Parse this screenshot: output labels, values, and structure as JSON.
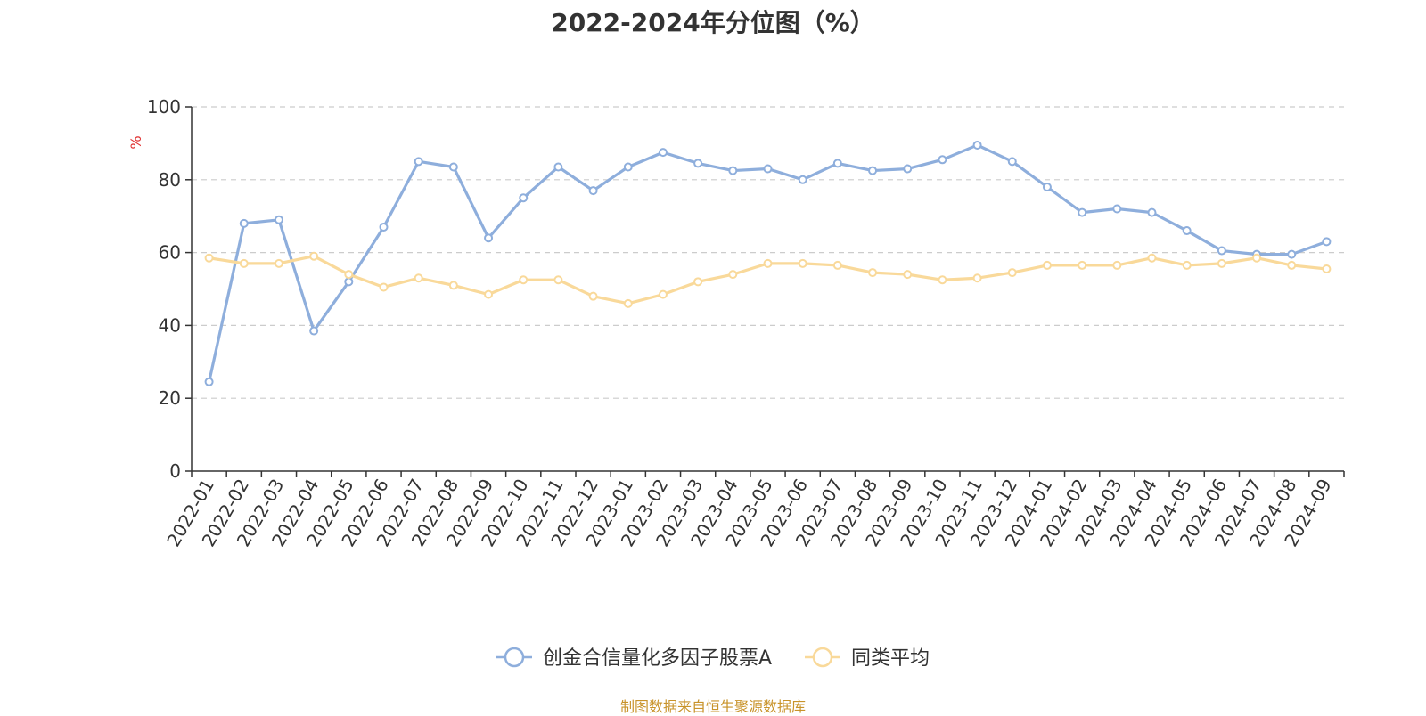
{
  "chart_data": {
    "type": "line",
    "title": "2022-2024年分位图（%）",
    "ylabel": "%",
    "xlabel": "",
    "ylim": [
      0,
      100
    ],
    "y_ticks": [
      0,
      20,
      40,
      60,
      80,
      100
    ],
    "grid": true,
    "legend_position": "bottom-center",
    "categories": [
      "2022-01",
      "2022-02",
      "2022-03",
      "2022-04",
      "2022-05",
      "2022-06",
      "2022-07",
      "2022-08",
      "2022-09",
      "2022-10",
      "2022-11",
      "2022-12",
      "2023-01",
      "2023-02",
      "2023-03",
      "2023-04",
      "2023-05",
      "2023-06",
      "2023-07",
      "2023-08",
      "2023-09",
      "2023-10",
      "2023-11",
      "2023-12",
      "2024-01",
      "2024-02",
      "2024-03",
      "2024-04",
      "2024-05",
      "2024-06",
      "2024-07",
      "2024-08",
      "2024-09"
    ],
    "series": [
      {
        "name": "创金合信量化多因子股票A",
        "color": "#8eaedc",
        "values": [
          24.5,
          68,
          69,
          38.5,
          52,
          67,
          85,
          83.5,
          64,
          75,
          83.5,
          77,
          83.5,
          87.5,
          84.5,
          82.5,
          83,
          80,
          84.5,
          82.5,
          83,
          85.5,
          89.5,
          85,
          78,
          71,
          72,
          71,
          66,
          60.5,
          59.5,
          59.5,
          63
        ]
      },
      {
        "name": "同类平均",
        "color": "#f9d99a",
        "values": [
          58.5,
          57,
          57,
          59,
          54,
          50.5,
          53,
          51,
          48.5,
          52.5,
          52.5,
          48,
          46,
          48.5,
          52,
          54,
          57,
          57,
          56.5,
          54.5,
          54,
          52.5,
          53,
          54.5,
          56.5,
          56.5,
          56.5,
          58.5,
          56.5,
          57,
          58.5,
          56.5,
          55.5
        ]
      }
    ]
  },
  "source_note": "制图数据来自恒生聚源数据库"
}
